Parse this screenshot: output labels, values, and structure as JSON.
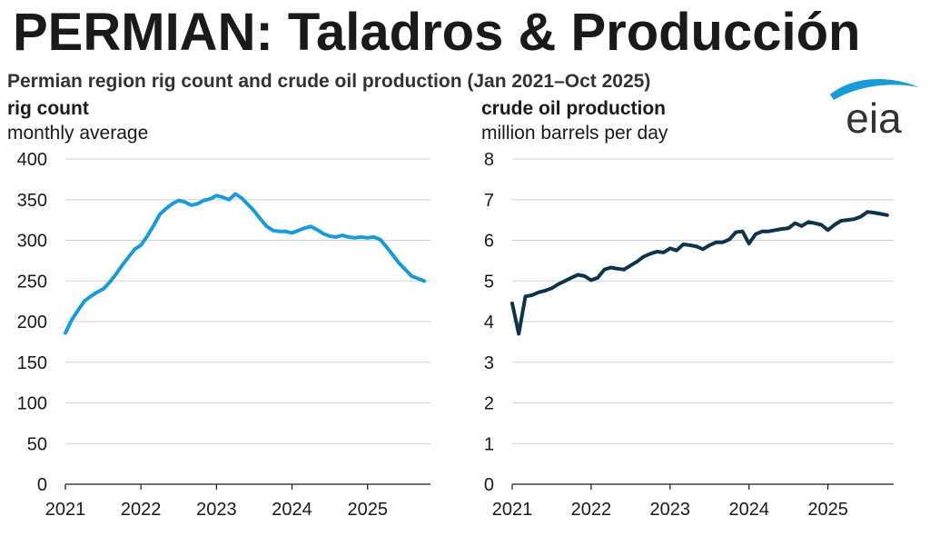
{
  "header": {
    "title": "PERMIAN: Taladros & Producción",
    "subtitle": "Permian region rig count and crude oil production (Jan 2021–Oct 2025)",
    "logo_text": "eia"
  },
  "colors": {
    "rig_line": "#1a9bd7",
    "production_line": "#0d3449",
    "grid": "#d0d0d0",
    "logo_swoosh": "#1a9bd7",
    "logo_text": "#333333"
  },
  "chart_data": [
    {
      "type": "line",
      "title": "rig count",
      "ylabel": "monthly average",
      "ylim": [
        0,
        400
      ],
      "yticks": [
        0,
        50,
        100,
        150,
        200,
        250,
        300,
        350,
        400
      ],
      "xlim": [
        2021.0,
        2025.833
      ],
      "xticks": [
        "2021",
        "2022",
        "2023",
        "2024",
        "2025"
      ],
      "grid": true,
      "series": [
        {
          "x": [
            2021.0,
            2021.083,
            2021.167,
            2021.25,
            2021.333,
            2021.417,
            2021.5,
            2021.583,
            2021.667,
            2021.75,
            2021.833,
            2021.917,
            2022.0,
            2022.083,
            2022.167,
            2022.25,
            2022.333,
            2022.417,
            2022.5,
            2022.583,
            2022.667,
            2022.75,
            2022.833,
            2022.917,
            2023.0,
            2023.083,
            2023.167,
            2023.25,
            2023.333,
            2023.417,
            2023.5,
            2023.583,
            2023.667,
            2023.75,
            2023.833,
            2023.917,
            2024.0,
            2024.083,
            2024.167,
            2024.25,
            2024.333,
            2024.417,
            2024.5,
            2024.583,
            2024.667,
            2024.75,
            2024.833,
            2024.917,
            2025.0,
            2025.083,
            2025.167,
            2025.25,
            2025.333,
            2025.417,
            2025.5,
            2025.583,
            2025.667,
            2025.75
          ],
          "values": [
            186,
            202,
            214,
            225,
            231,
            236,
            240,
            248,
            258,
            269,
            279,
            289,
            294,
            305,
            318,
            332,
            339,
            345,
            349,
            347,
            343,
            345,
            349,
            351,
            355,
            353,
            350,
            357,
            352,
            344,
            336,
            326,
            317,
            312,
            311,
            311,
            309,
            312,
            315,
            317,
            313,
            308,
            305,
            304,
            306,
            304,
            303,
            304,
            303,
            304,
            301,
            292,
            282,
            272,
            264,
            256,
            253,
            250
          ]
        }
      ]
    },
    {
      "type": "line",
      "title": "crude oil production",
      "ylabel": "million barrels per day",
      "ylim": [
        0,
        8
      ],
      "yticks": [
        0,
        1,
        2,
        3,
        4,
        5,
        6,
        7,
        8
      ],
      "xlim": [
        2021.0,
        2025.833
      ],
      "xticks": [
        "2021",
        "2022",
        "2023",
        "2024",
        "2025"
      ],
      "grid": true,
      "series": [
        {
          "x": [
            2021.0,
            2021.083,
            2021.167,
            2021.25,
            2021.333,
            2021.417,
            2021.5,
            2021.583,
            2021.667,
            2021.75,
            2021.833,
            2021.917,
            2022.0,
            2022.083,
            2022.167,
            2022.25,
            2022.333,
            2022.417,
            2022.5,
            2022.583,
            2022.667,
            2022.75,
            2022.833,
            2022.917,
            2023.0,
            2023.083,
            2023.167,
            2023.25,
            2023.333,
            2023.417,
            2023.5,
            2023.583,
            2023.667,
            2023.75,
            2023.833,
            2023.917,
            2024.0,
            2024.083,
            2024.167,
            2024.25,
            2024.333,
            2024.417,
            2024.5,
            2024.583,
            2024.667,
            2024.75,
            2024.833,
            2024.917,
            2025.0,
            2025.083,
            2025.167,
            2025.25,
            2025.333,
            2025.417,
            2025.5,
            2025.583,
            2025.667,
            2025.75
          ],
          "values": [
            4.45,
            3.7,
            4.62,
            4.65,
            4.72,
            4.76,
            4.82,
            4.92,
            5.0,
            5.08,
            5.15,
            5.12,
            5.02,
            5.08,
            5.28,
            5.33,
            5.3,
            5.28,
            5.38,
            5.48,
            5.6,
            5.67,
            5.72,
            5.7,
            5.8,
            5.75,
            5.9,
            5.88,
            5.85,
            5.78,
            5.88,
            5.95,
            5.95,
            6.02,
            6.2,
            6.22,
            5.92,
            6.15,
            6.22,
            6.22,
            6.25,
            6.28,
            6.3,
            6.42,
            6.35,
            6.45,
            6.42,
            6.38,
            6.25,
            6.38,
            6.48,
            6.5,
            6.52,
            6.58,
            6.7,
            6.68,
            6.65,
            6.62
          ]
        }
      ]
    }
  ]
}
